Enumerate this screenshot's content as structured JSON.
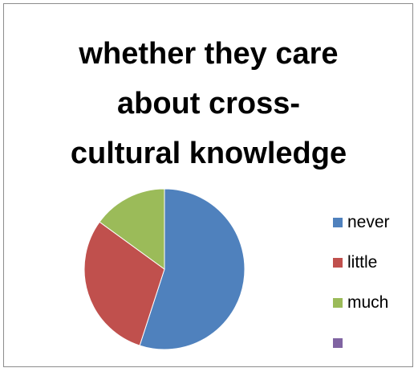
{
  "chart_data": {
    "type": "pie",
    "title": "whether they care about cross-cultural knowledge",
    "title_lines": [
      "whether they care",
      "about cross-",
      "cultural knowledge"
    ],
    "legend_position": "right",
    "categories": [
      "never",
      "little",
      "much",
      ""
    ],
    "values": [
      55,
      30,
      15,
      0
    ],
    "colors": [
      "#4f81bd",
      "#c0504d",
      "#9bbb59",
      "#8064a2"
    ]
  }
}
